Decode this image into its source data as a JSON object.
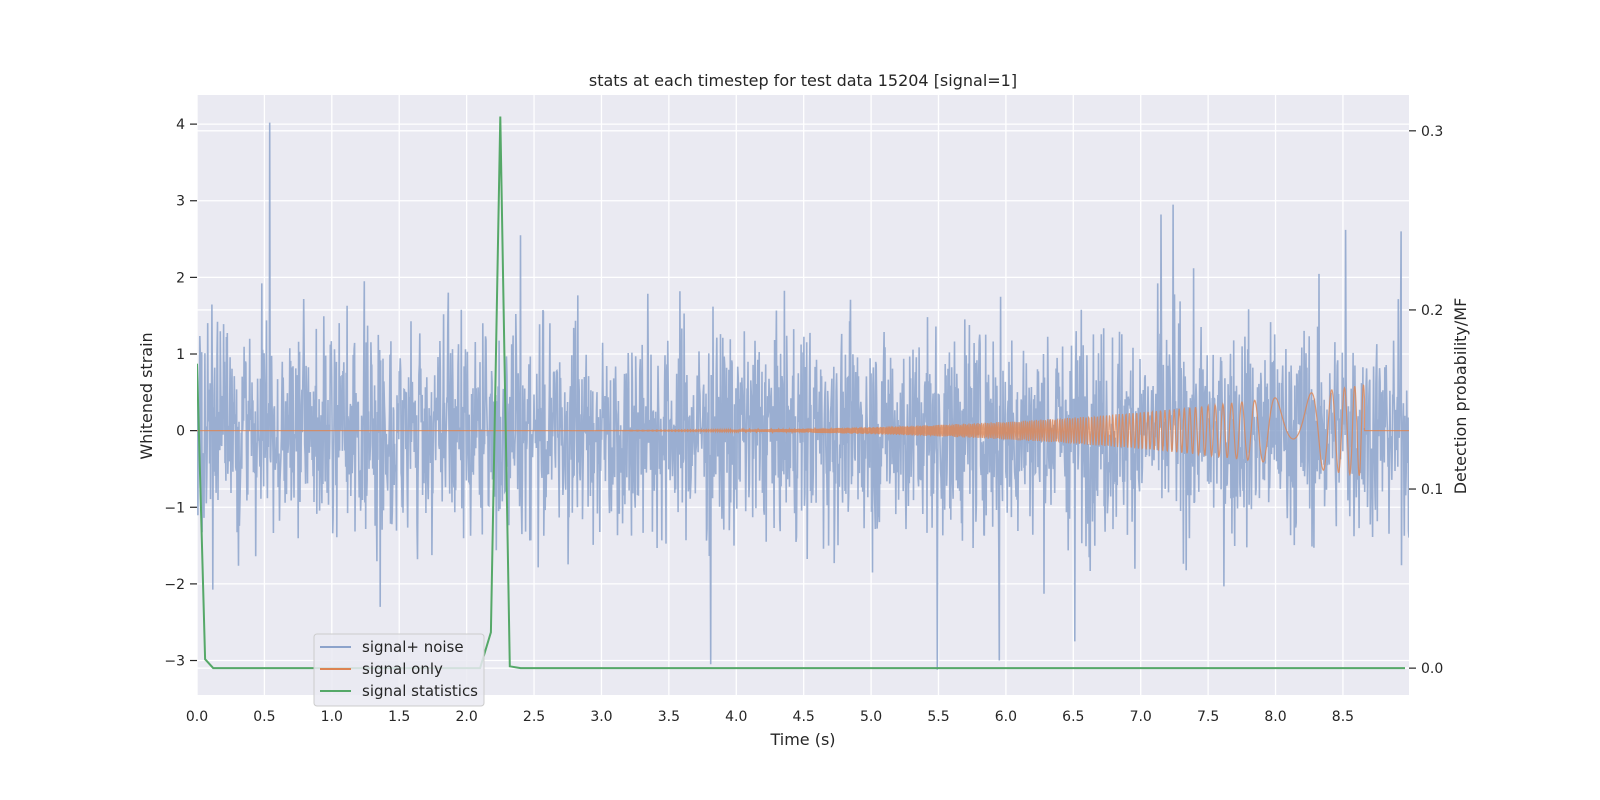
{
  "chart_data": {
    "type": "line",
    "title": "stats at each timestep for test data 15204 [signal=1]",
    "xlabel": "Time (s)",
    "ylabel": "Whitened strain",
    "ylabel_right": "Detection probability/MF",
    "xlim": [
      0.0,
      8.99
    ],
    "ylim": [
      -3.45,
      4.38
    ],
    "ylim_right": [
      -0.015,
      0.32
    ],
    "x_ticks": [
      "0.0",
      "0.5",
      "1.0",
      "1.5",
      "2.0",
      "2.5",
      "3.0",
      "3.5",
      "4.0",
      "4.5",
      "5.0",
      "5.5",
      "6.0",
      "6.5",
      "7.0",
      "7.5",
      "8.0",
      "8.5"
    ],
    "y_ticks": [
      "−3",
      "−2",
      "−1",
      "0",
      "1",
      "2",
      "3",
      "4"
    ],
    "y_ticks_right": [
      "0.0",
      "0.1",
      "0.2",
      "0.3"
    ],
    "grid": true,
    "legend_position": "lower-left",
    "colors": {
      "background": "#eaeaf2",
      "grid": "#ffffff",
      "signal_noise": "#8ca3cb",
      "signal_only": "#dd8452",
      "signal_statistics": "#55a868"
    },
    "series": [
      {
        "name": "signal+ noise",
        "axis": "left",
        "description_values": {
          "duration_s": 8.99,
          "peak_points": [
            [
              0.54,
              4.02
            ],
            [
              1.36,
              -2.3
            ],
            [
              2.4,
              2.55
            ],
            [
              3.81,
              -3.05
            ],
            [
              5.49,
              -3.12
            ],
            [
              5.95,
              -3.0
            ],
            [
              6.51,
              -2.75
            ],
            [
              7.24,
              2.95
            ],
            [
              7.15,
              2.82
            ],
            [
              8.52,
              2.62
            ],
            [
              8.93,
              2.6
            ]
          ],
          "typical_envelope": [
            -2.0,
            2.0
          ]
        }
      },
      {
        "name": "signal only",
        "axis": "left",
        "description_values": {
          "chirp_start_s": 2.0,
          "chirp_end_s": 8.66,
          "max_amplitude_at_end": 0.6
        }
      },
      {
        "name": "signal statistics",
        "axis": "right",
        "x": [
          0.0,
          0.06,
          0.12,
          0.2,
          0.3,
          2.1,
          2.18,
          2.25,
          2.32,
          2.4,
          8.96
        ],
        "y": [
          0.17,
          0.005,
          0.0,
          0.0,
          0.0,
          0.0,
          0.02,
          0.308,
          0.001,
          0.0,
          0.0
        ]
      }
    ]
  }
}
